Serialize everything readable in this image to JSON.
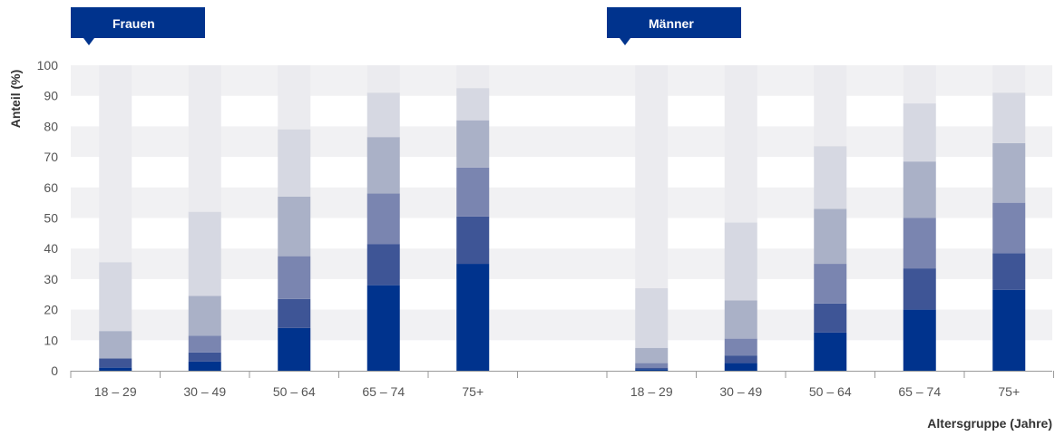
{
  "chart_data": {
    "type": "bar",
    "stacked": true,
    "ylabel": "Anteil (%)",
    "xlabel": "Altersgruppe (Jahre)",
    "ylim": [
      0,
      100
    ],
    "yticks": [
      0,
      10,
      20,
      30,
      40,
      50,
      60,
      70,
      80,
      90,
      100
    ],
    "grid": "horizontal bands",
    "stack_colors": [
      "#00338d",
      "#3e5596",
      "#7a85b0",
      "#aab1c7",
      "#d6d8e2"
    ],
    "remainder_color": "#ebebef",
    "panels": [
      {
        "label": "Frauen",
        "categories": [
          "18 – 29",
          "30 – 49",
          "50 – 64",
          "65 – 74",
          "75+"
        ],
        "cumulative_levels": [
          [
            1,
            4,
            4,
            13,
            35.5
          ],
          [
            3,
            6,
            11.5,
            24.5,
            52
          ],
          [
            14,
            23.5,
            37.5,
            57,
            79
          ],
          [
            28,
            41.5,
            58,
            76.5,
            91
          ],
          [
            35,
            50.5,
            66.5,
            82,
            92.5
          ]
        ]
      },
      {
        "label": "Männer",
        "categories": [
          "18 – 29",
          "30 – 49",
          "50 – 64",
          "65 – 74",
          "75+"
        ],
        "cumulative_levels": [
          [
            0.5,
            1,
            2.5,
            7.5,
            27
          ],
          [
            2.5,
            5,
            10.5,
            23,
            48.5
          ],
          [
            12.5,
            22,
            35,
            53,
            73.5
          ],
          [
            20,
            33.5,
            50,
            68.5,
            87.5
          ],
          [
            26.5,
            38.5,
            55,
            74.5,
            91
          ]
        ]
      }
    ]
  }
}
